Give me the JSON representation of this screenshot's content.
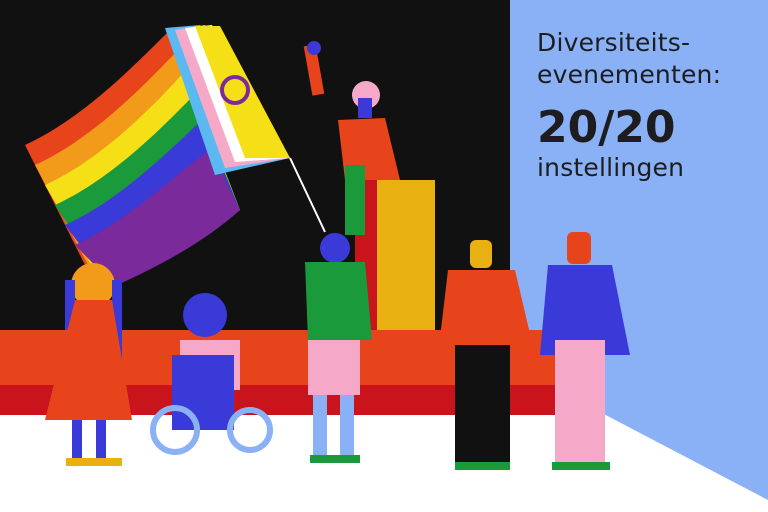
{
  "headline": {
    "line1": "Diversiteits-",
    "line2": "evenementen:",
    "figure": "20/20",
    "line4": "instellingen"
  },
  "colors": {
    "background_dark": "#111111",
    "panel_blue": "#8ab0f5",
    "stage_orange": "#e8441c",
    "stage_red": "#c8141a"
  }
}
